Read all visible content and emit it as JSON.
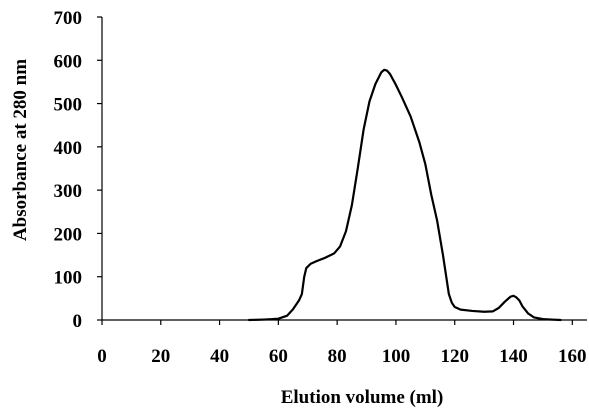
{
  "chart_data": {
    "type": "line",
    "title": "",
    "xlabel": "Elution volume (ml)",
    "ylabel": "Absorbance at 280 nm",
    "xlim": [
      0,
      165
    ],
    "ylim": [
      0,
      700
    ],
    "xticks": [
      0,
      20,
      40,
      60,
      80,
      100,
      120,
      140,
      160
    ],
    "yticks": [
      0,
      100,
      200,
      300,
      400,
      500,
      600,
      700
    ],
    "grid": false,
    "legend": "none",
    "series": [
      {
        "color": "#000000",
        "points": [
          [
            50,
            0
          ],
          [
            55,
            1
          ],
          [
            58,
            2
          ],
          [
            60,
            3
          ],
          [
            63,
            10
          ],
          [
            65,
            25
          ],
          [
            67,
            45
          ],
          [
            68,
            60
          ],
          [
            68.8,
            100
          ],
          [
            69.5,
            120
          ],
          [
            71,
            130
          ],
          [
            73,
            136
          ],
          [
            76,
            144
          ],
          [
            79,
            154
          ],
          [
            81,
            170
          ],
          [
            83,
            205
          ],
          [
            85,
            265
          ],
          [
            87,
            350
          ],
          [
            89,
            440
          ],
          [
            91,
            505
          ],
          [
            93,
            545
          ],
          [
            95,
            572
          ],
          [
            96,
            578
          ],
          [
            97,
            576
          ],
          [
            98,
            568
          ],
          [
            100,
            543
          ],
          [
            102,
            515
          ],
          [
            105,
            470
          ],
          [
            108,
            410
          ],
          [
            110,
            360
          ],
          [
            112,
            290
          ],
          [
            114,
            230
          ],
          [
            116,
            150
          ],
          [
            118,
            60
          ],
          [
            119,
            40
          ],
          [
            120,
            30
          ],
          [
            122,
            24
          ],
          [
            126,
            21
          ],
          [
            130,
            19
          ],
          [
            133,
            20
          ],
          [
            135,
            28
          ],
          [
            137,
            42
          ],
          [
            139,
            54
          ],
          [
            140,
            56
          ],
          [
            141,
            52
          ],
          [
            142,
            45
          ],
          [
            143,
            32
          ],
          [
            145,
            15
          ],
          [
            147,
            6
          ],
          [
            150,
            2
          ],
          [
            153,
            1
          ],
          [
            156,
            0
          ]
        ]
      }
    ]
  }
}
